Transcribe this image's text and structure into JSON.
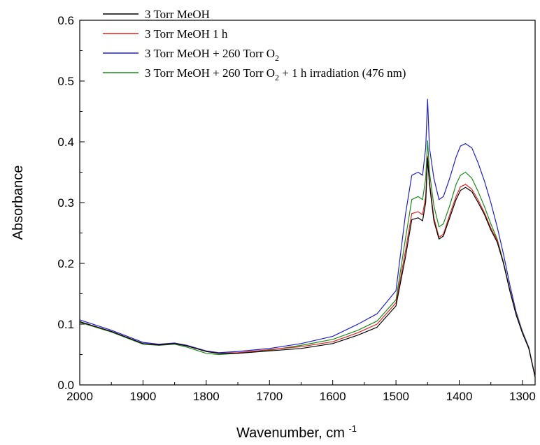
{
  "chart_data": {
    "type": "line",
    "xlabel": "Wavenumber, cm",
    "xlabel_superscript": "-1",
    "ylabel": "Absorbance",
    "xlim": [
      2000,
      1280
    ],
    "x_reversed": true,
    "ylim": [
      0.0,
      0.6
    ],
    "x_ticks": [
      2000,
      1900,
      1800,
      1700,
      1600,
      1500,
      1400,
      1300
    ],
    "x_tick_labels": [
      "2000",
      "1900",
      "1800",
      "1700",
      "1600",
      "1500",
      "1400",
      "1300"
    ],
    "y_ticks": [
      0.0,
      0.1,
      0.2,
      0.3,
      0.4,
      0.5,
      0.6
    ],
    "y_tick_labels": [
      "0.0",
      "0.1",
      "0.2",
      "0.3",
      "0.4",
      "0.5",
      "0.6"
    ],
    "grid": false,
    "legend_position": "top-left",
    "series": [
      {
        "name": "3 Torr MeOH",
        "color": "#000000",
        "x": [
          2000,
          1950,
          1900,
          1875,
          1850,
          1830,
          1800,
          1780,
          1750,
          1700,
          1650,
          1600,
          1560,
          1530,
          1500,
          1485,
          1475,
          1465,
          1458,
          1453,
          1450,
          1447,
          1440,
          1432,
          1425,
          1415,
          1405,
          1398,
          1390,
          1380,
          1370,
          1360,
          1350,
          1340,
          1330,
          1320,
          1310,
          1300,
          1290,
          1280
        ],
        "y": [
          0.104,
          0.088,
          0.068,
          0.066,
          0.068,
          0.064,
          0.055,
          0.052,
          0.052,
          0.056,
          0.06,
          0.068,
          0.082,
          0.095,
          0.13,
          0.21,
          0.272,
          0.275,
          0.27,
          0.3,
          0.373,
          0.33,
          0.27,
          0.24,
          0.245,
          0.275,
          0.305,
          0.32,
          0.325,
          0.318,
          0.3,
          0.28,
          0.255,
          0.235,
          0.2,
          0.155,
          0.115,
          0.085,
          0.06,
          0.013
        ]
      },
      {
        "name": "3 Torr MeOH 1 h",
        "color": "#e0201b",
        "x": [
          2000,
          1950,
          1900,
          1875,
          1850,
          1830,
          1800,
          1780,
          1750,
          1700,
          1650,
          1600,
          1560,
          1530,
          1500,
          1485,
          1475,
          1465,
          1458,
          1453,
          1450,
          1447,
          1440,
          1432,
          1425,
          1415,
          1405,
          1398,
          1390,
          1380,
          1370,
          1360,
          1350,
          1340,
          1330,
          1320,
          1310,
          1300,
          1290,
          1280
        ],
        "y": [
          0.104,
          0.088,
          0.068,
          0.066,
          0.068,
          0.064,
          0.055,
          0.052,
          0.053,
          0.058,
          0.063,
          0.071,
          0.086,
          0.1,
          0.135,
          0.22,
          0.282,
          0.285,
          0.28,
          0.31,
          0.376,
          0.335,
          0.275,
          0.243,
          0.248,
          0.28,
          0.31,
          0.326,
          0.33,
          0.322,
          0.304,
          0.283,
          0.258,
          0.238,
          0.2,
          0.156,
          0.116,
          0.086,
          0.06,
          0.013
        ]
      },
      {
        "name": "3 Torr MeOH + 260 Torr O",
        "name_subscript": "2",
        "color": "#1f1fd0",
        "x": [
          2000,
          1950,
          1900,
          1875,
          1850,
          1830,
          1800,
          1780,
          1750,
          1700,
          1650,
          1600,
          1560,
          1530,
          1500,
          1485,
          1475,
          1465,
          1458,
          1453,
          1450,
          1447,
          1440,
          1432,
          1425,
          1415,
          1405,
          1398,
          1390,
          1380,
          1370,
          1360,
          1350,
          1340,
          1330,
          1320,
          1310,
          1300,
          1290,
          1280
        ],
        "y": [
          0.107,
          0.09,
          0.07,
          0.067,
          0.069,
          0.065,
          0.056,
          0.053,
          0.055,
          0.06,
          0.068,
          0.08,
          0.1,
          0.117,
          0.155,
          0.28,
          0.345,
          0.35,
          0.345,
          0.39,
          0.47,
          0.39,
          0.34,
          0.305,
          0.31,
          0.34,
          0.375,
          0.393,
          0.397,
          0.39,
          0.365,
          0.335,
          0.3,
          0.26,
          0.215,
          0.165,
          0.12,
          0.088,
          0.062,
          0.013
        ]
      },
      {
        "name": "3 Torr MeOH + 260 Torr O",
        "name_subscript": "2",
        "name_suffix": " + 1 h irradiation (476 nm)",
        "color": "#1a8a1a",
        "x": [
          2000,
          1950,
          1900,
          1875,
          1850,
          1830,
          1800,
          1780,
          1750,
          1700,
          1650,
          1600,
          1560,
          1530,
          1500,
          1485,
          1475,
          1465,
          1458,
          1453,
          1450,
          1447,
          1440,
          1432,
          1425,
          1415,
          1405,
          1398,
          1390,
          1380,
          1370,
          1360,
          1350,
          1340,
          1330,
          1320,
          1310,
          1300,
          1290,
          1280
        ],
        "y": [
          0.103,
          0.087,
          0.067,
          0.065,
          0.067,
          0.062,
          0.052,
          0.05,
          0.052,
          0.057,
          0.065,
          0.075,
          0.09,
          0.105,
          0.14,
          0.24,
          0.305,
          0.31,
          0.305,
          0.34,
          0.402,
          0.35,
          0.295,
          0.26,
          0.265,
          0.295,
          0.33,
          0.345,
          0.35,
          0.34,
          0.318,
          0.293,
          0.265,
          0.24,
          0.202,
          0.157,
          0.117,
          0.087,
          0.061,
          0.013
        ]
      }
    ]
  },
  "colors": {
    "black": "#000000",
    "red": "#e0201b",
    "blue": "#1f1fd0",
    "green": "#1a8a1a"
  }
}
